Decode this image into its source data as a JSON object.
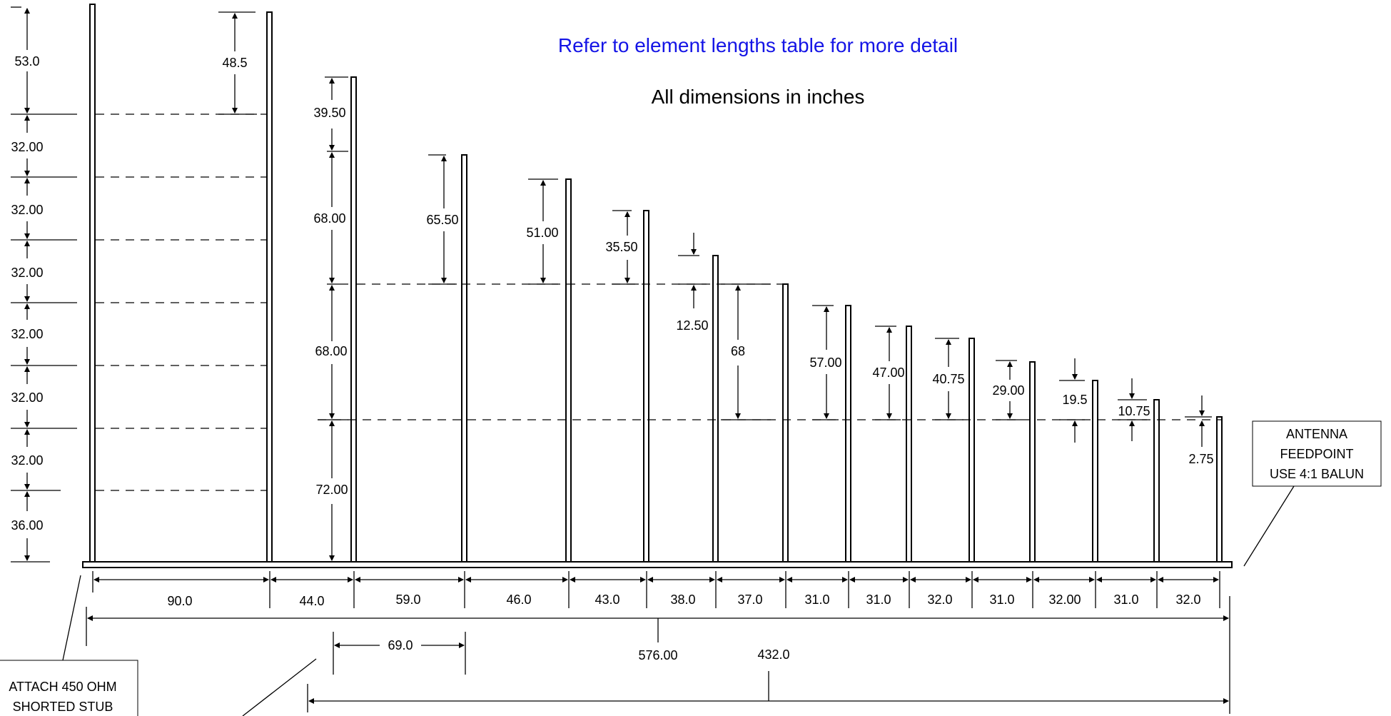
{
  "header": {
    "note": "Refer to element lengths table for more detail",
    "note_color": "#1414e6",
    "units": "All dimensions in inches"
  },
  "left_stack": [
    "53.0",
    "32.00",
    "32.00",
    "32.00",
    "32.00",
    "32.00",
    "32.00",
    "36.00"
  ],
  "element_labels": {
    "e2": "48.5",
    "e3_top": "39.50",
    "e3_mid": "68.00",
    "e3_low": "68.00",
    "e3_bot": "72.00",
    "e4": "65.50",
    "e5": "51.00",
    "e6": "35.50",
    "e7": "12.50",
    "e8": "68",
    "e9": "57.00",
    "e10": "47.00",
    "e11": "40.75",
    "e12": "29.00",
    "e13": "19.5",
    "e14": "10.75",
    "e15": "2.75"
  },
  "spacings": [
    "90.0",
    "44.0",
    "59.0",
    "46.0",
    "43.0",
    "38.0",
    "37.0",
    "31.0",
    "31.0",
    "32.0",
    "31.0",
    "32.00",
    "31.0",
    "32.0"
  ],
  "overall": {
    "total": "576.00",
    "partial": "432.0",
    "offset": "69.0"
  },
  "callouts": {
    "feedpoint": [
      "ANTENNA",
      "FEEDPOINT",
      "USE 4:1 BALUN"
    ],
    "stub": [
      "ATTACH 450 OHM",
      "SHORTED STUB"
    ]
  }
}
